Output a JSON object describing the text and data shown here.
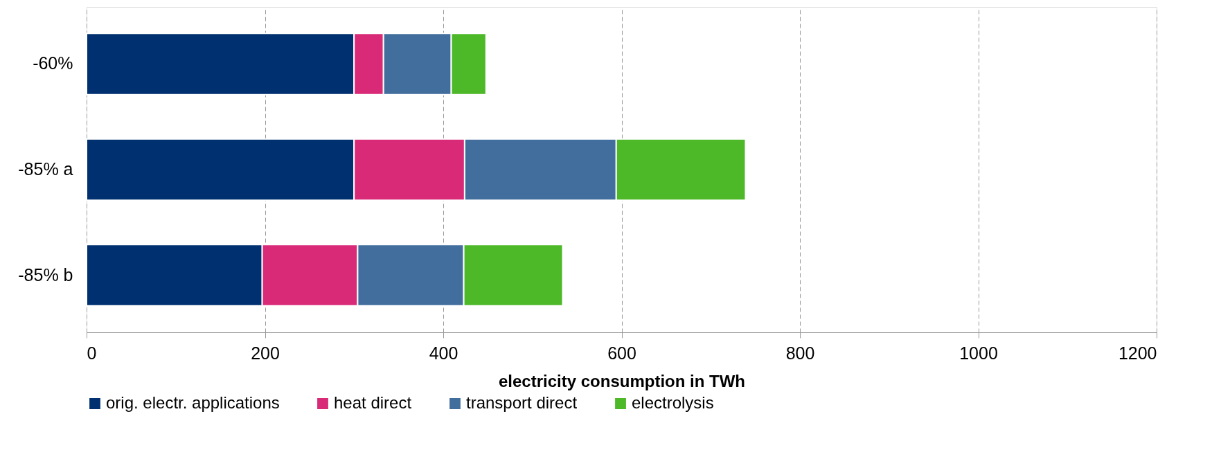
{
  "chart_data": {
    "type": "bar",
    "orientation": "horizontal",
    "stacked": true,
    "categories": [
      "-60%",
      "-85% a",
      "-85% b"
    ],
    "series": [
      {
        "name": "orig. electr. applications",
        "color": "#003070",
        "values": [
          300,
          300,
          197
        ]
      },
      {
        "name": "heat direct",
        "color": "#d92a78",
        "values": [
          33,
          124,
          107
        ]
      },
      {
        "name": "transport direct",
        "color": "#426e9e",
        "values": [
          76,
          170,
          119
        ]
      },
      {
        "name": "electrolysis",
        "color": "#4db828",
        "values": [
          39,
          145,
          111
        ]
      }
    ],
    "xlabel": "electricity consumption in TWh",
    "xlim": [
      0,
      1200
    ],
    "xticks": [
      0,
      200,
      400,
      600,
      800,
      1000,
      1200
    ],
    "grid": "x",
    "legend": "bottom"
  }
}
